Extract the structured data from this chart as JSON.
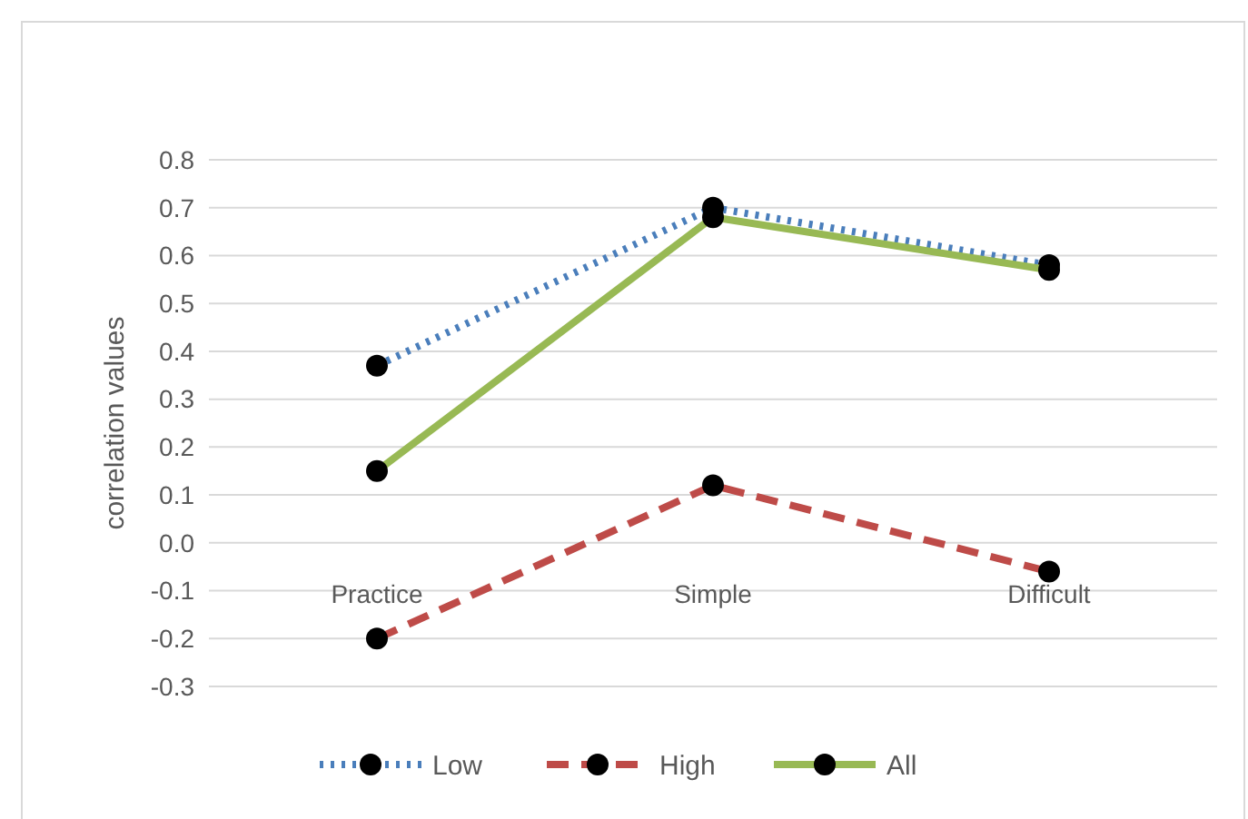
{
  "chart_data": {
    "type": "line",
    "ylabel": "correlation values",
    "categories": [
      "Practice",
      "Simple",
      "Difficult"
    ],
    "series": [
      {
        "name": "Low",
        "color": "#4a7ebb",
        "line_style": "dotted",
        "values": [
          0.37,
          0.7,
          0.58
        ]
      },
      {
        "name": "High",
        "color": "#be4b48",
        "line_style": "dashed",
        "values": [
          -0.2,
          0.12,
          -0.06
        ]
      },
      {
        "name": "All",
        "color": "#98b954",
        "line_style": "solid",
        "values": [
          0.15,
          0.68,
          0.57
        ]
      }
    ],
    "ylim": [
      -0.3,
      0.8
    ],
    "yticks": [
      {
        "value": -0.3,
        "label": "-0.3"
      },
      {
        "value": -0.2,
        "label": "-0.2"
      },
      {
        "value": -0.1,
        "label": "-0.1"
      },
      {
        "value": 0,
        "label": "0.0"
      },
      0.1,
      0.2,
      0.3,
      0.4,
      0.5,
      0.6,
      0.7,
      0.8
    ],
    "grid": "y",
    "marker": "circle",
    "legend": "bottom"
  }
}
